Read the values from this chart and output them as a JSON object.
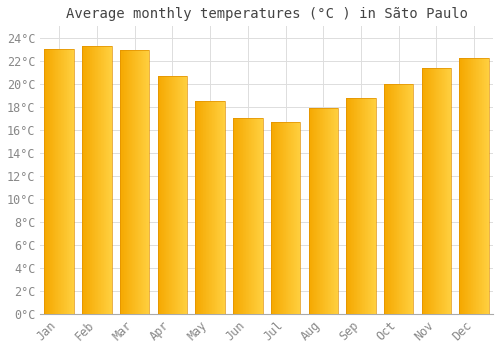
{
  "title": "Average monthly temperatures (°C ) in Sãto Paulo",
  "months": [
    "Jan",
    "Feb",
    "Mar",
    "Apr",
    "May",
    "Jun",
    "Jul",
    "Aug",
    "Sep",
    "Oct",
    "Nov",
    "Dec"
  ],
  "temperatures": [
    23.0,
    23.3,
    22.9,
    20.7,
    18.5,
    17.0,
    16.7,
    17.9,
    18.8,
    20.0,
    21.4,
    22.2
  ],
  "bar_color_left": "#F5A800",
  "bar_color_right": "#FFD040",
  "background_color": "#FFFFFF",
  "plot_bg_color": "#FFFFFF",
  "grid_color": "#DDDDDD",
  "text_color": "#888888",
  "title_color": "#444444",
  "ylim": [
    0,
    25
  ],
  "ytick_interval": 2,
  "title_fontsize": 10,
  "tick_fontsize": 8.5,
  "bar_width": 0.78
}
